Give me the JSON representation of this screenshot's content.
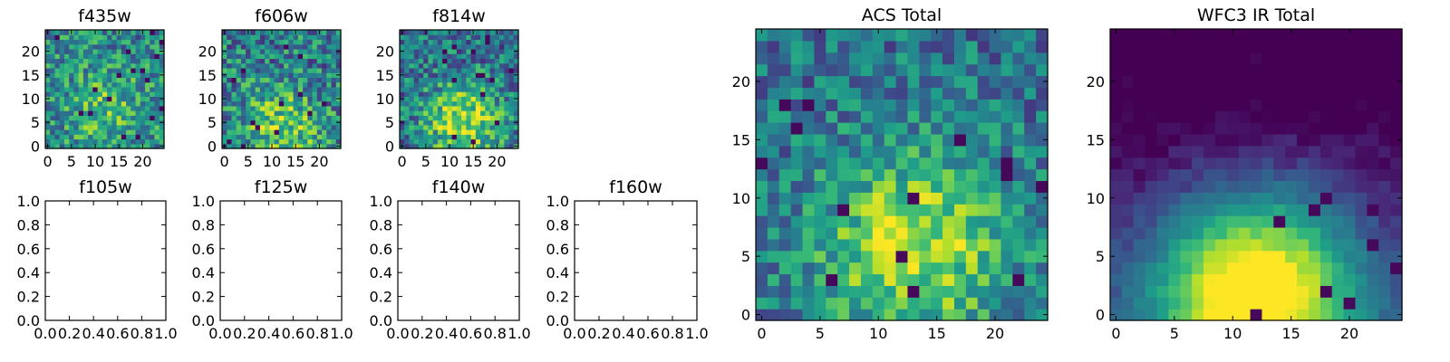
{
  "figure": {
    "panel_titles": [
      "f435w",
      "f606w",
      "f814w",
      "f105w",
      "f125w",
      "f140w",
      "f160w",
      "ACS Total",
      "WFC3 IR Total"
    ]
  },
  "chart_data": [
    {
      "type": "heatmap",
      "title": "f435w",
      "grid": [
        25,
        25
      ],
      "xlim": [
        -0.5,
        24.5
      ],
      "ylim": [
        -0.5,
        24.5
      ],
      "xticks": [
        0,
        5,
        10,
        15,
        20
      ],
      "yticks": [
        0,
        5,
        10,
        15,
        20
      ],
      "colormap": "viridis",
      "seed": 11,
      "noise": 0.55,
      "blob_center": [
        12,
        8
      ],
      "blob_strength": 0.25
    },
    {
      "type": "heatmap",
      "title": "f606w",
      "grid": [
        25,
        25
      ],
      "xlim": [
        -0.5,
        24.5
      ],
      "ylim": [
        -0.5,
        24.5
      ],
      "xticks": [
        0,
        5,
        10,
        15,
        20
      ],
      "yticks": [
        0,
        5,
        10,
        15,
        20
      ],
      "colormap": "viridis",
      "seed": 23,
      "noise": 0.6,
      "blob_center": [
        12,
        4
      ],
      "blob_strength": 0.35
    },
    {
      "type": "heatmap",
      "title": "f814w",
      "grid": [
        25,
        25
      ],
      "xlim": [
        -0.5,
        24.5
      ],
      "ylim": [
        -0.5,
        24.5
      ],
      "xticks": [
        0,
        5,
        10,
        15,
        20
      ],
      "yticks": [
        0,
        5,
        10,
        15,
        20
      ],
      "colormap": "viridis",
      "seed": 37,
      "noise": 0.55,
      "blob_center": [
        13,
        5
      ],
      "blob_strength": 0.5
    },
    {
      "type": "empty",
      "title": "f105w",
      "xlim": [
        0,
        1
      ],
      "ylim": [
        0,
        1
      ],
      "xticks": [
        "0.0",
        "0.2",
        "0.4",
        "0.6",
        "0.8",
        "1.0"
      ],
      "yticks": [
        "0.0",
        "0.2",
        "0.4",
        "0.6",
        "0.8",
        "1.0"
      ]
    },
    {
      "type": "empty",
      "title": "f125w",
      "xlim": [
        0,
        1
      ],
      "ylim": [
        0,
        1
      ],
      "xticks": [
        "0.0",
        "0.2",
        "0.4",
        "0.6",
        "0.8",
        "1.0"
      ],
      "yticks": [
        "0.0",
        "0.2",
        "0.4",
        "0.6",
        "0.8",
        "1.0"
      ]
    },
    {
      "type": "empty",
      "title": "f140w",
      "xlim": [
        0,
        1
      ],
      "ylim": [
        0,
        1
      ],
      "xticks": [
        "0.0",
        "0.2",
        "0.4",
        "0.6",
        "0.8",
        "1.0"
      ],
      "yticks": [
        "0.0",
        "0.2",
        "0.4",
        "0.6",
        "0.8",
        "1.0"
      ]
    },
    {
      "type": "empty",
      "title": "f160w",
      "xlim": [
        0,
        1
      ],
      "ylim": [
        0,
        1
      ],
      "xticks": [
        "0.0",
        "0.2",
        "0.4",
        "0.6",
        "0.8",
        "1.0"
      ],
      "yticks": [
        "0.0",
        "0.2",
        "0.4",
        "0.6",
        "0.8",
        "1.0"
      ]
    },
    {
      "type": "heatmap",
      "title": "ACS Total",
      "grid": [
        25,
        25
      ],
      "xlim": [
        -0.5,
        24.5
      ],
      "ylim": [
        -0.5,
        24.5
      ],
      "xticks": [
        0,
        5,
        10,
        15,
        20
      ],
      "yticks": [
        0,
        5,
        10,
        15,
        20
      ],
      "colormap": "viridis",
      "seed": 53,
      "noise": 0.45,
      "blob_center": [
        13,
        6
      ],
      "blob_strength": 0.5
    },
    {
      "type": "heatmap",
      "title": "WFC3 IR Total",
      "grid": [
        25,
        25
      ],
      "xlim": [
        -0.5,
        24.5
      ],
      "ylim": [
        -0.5,
        24.5
      ],
      "xticks": [
        0,
        5,
        10,
        15,
        20
      ],
      "yticks": [
        0,
        5,
        10,
        15,
        20
      ],
      "colormap": "viridis",
      "seed": 71,
      "noise": 0.12,
      "blob_center": [
        12,
        2
      ],
      "blob_strength": 1.0
    }
  ]
}
